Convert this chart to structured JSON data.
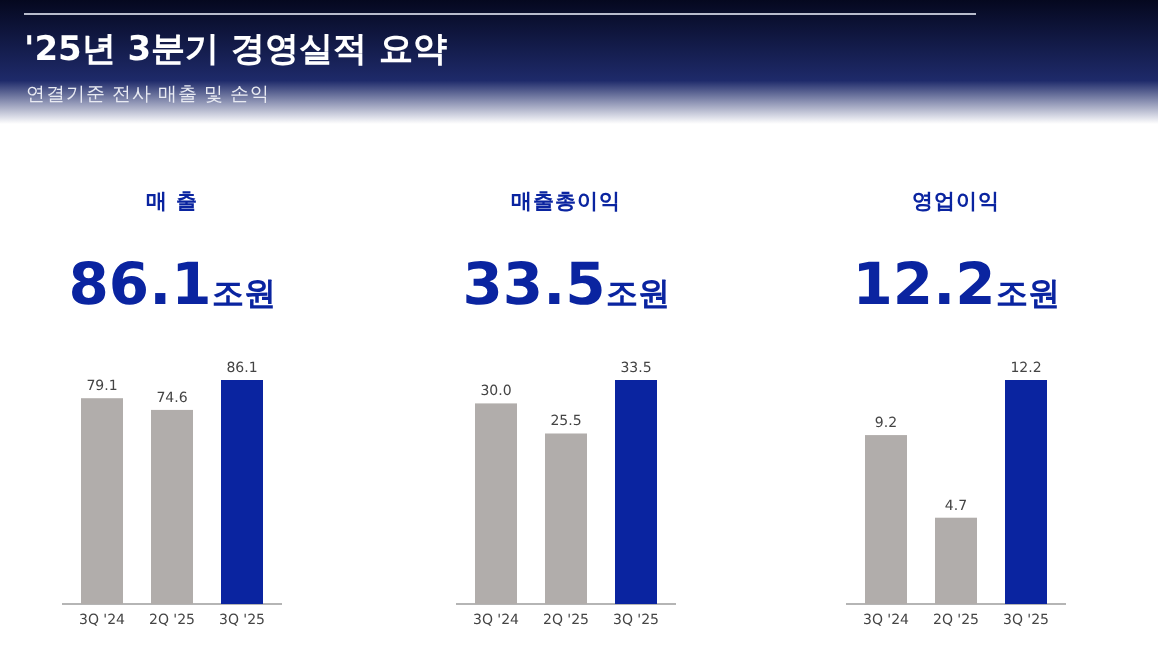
{
  "chart_data": [
    {
      "type": "other",
      "title": "'25년 3분기 경영실적 요약",
      "subtitle": "연결기준 전사 매출 및 손익"
    },
    {
      "type": "bar",
      "title": "매 출",
      "subtitle": "86.1조원",
      "categories": [
        "3Q '24",
        "2Q '25",
        "3Q '25"
      ],
      "values": [
        79.1,
        74.6,
        86.1
      ],
      "colors": [
        "#b1adab",
        "#b1adab",
        "#0a24a0"
      ],
      "data_labels": true
    },
    {
      "type": "bar",
      "title": "매출총이익",
      "subtitle": "33.5조원",
      "categories": [
        "3Q '24",
        "2Q '25",
        "3Q '25"
      ],
      "values": [
        30.0,
        25.5,
        33.5
      ],
      "value_labels": [
        "30.0",
        "25.5",
        "33.5"
      ],
      "colors": [
        "#b1adab",
        "#b1adab",
        "#0a24a0"
      ]
    },
    {
      "type": "bar",
      "title": "영업이익",
      "subtitle": "12.2조원",
      "categories": [
        "3Q '24",
        "2Q '25",
        "3Q '25"
      ],
      "values": [
        9.2,
        4.7,
        12.2
      ],
      "colors": [
        "#b1adab",
        "#b1adab",
        "#0a24a0"
      ],
      "data_labels": true
    }
  ]
}
